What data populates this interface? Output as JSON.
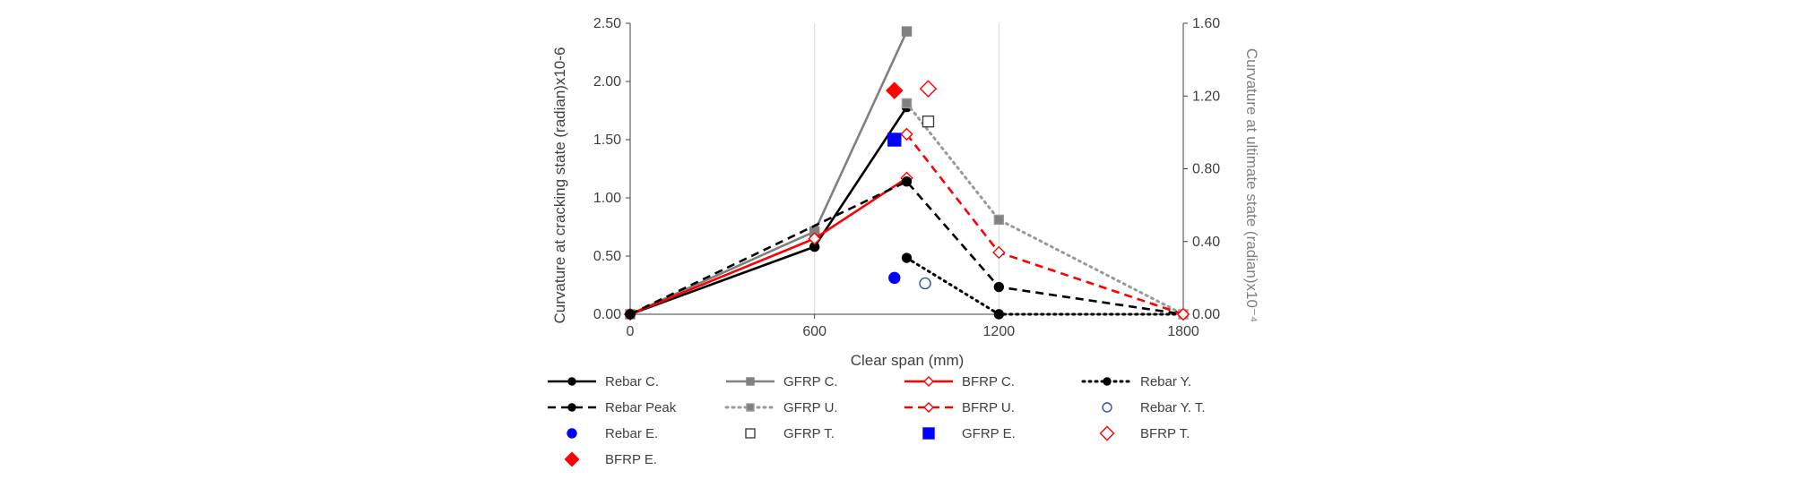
{
  "chart_data": {
    "type": "line",
    "xlabel": "Clear span (mm)",
    "ylabel_left": "Curvature at cracking state (radian)x10-6",
    "ylabel_right": "Curvature at ultimate state (radian)x10⁻⁴",
    "xlim": [
      0,
      1800
    ],
    "x_ticks": [
      "0",
      "600",
      "1200",
      "1800"
    ],
    "ylim_left": [
      0,
      2.5
    ],
    "y_ticks_left": [
      "0.00",
      "0.50",
      "1.00",
      "1.50",
      "2.00",
      "2.50"
    ],
    "ylim_right": [
      0,
      1.6
    ],
    "y_ticks_right": [
      "0.00",
      "0.40",
      "0.80",
      "1.20",
      "1.60"
    ],
    "grid": "vertical",
    "legend_position": "bottom",
    "series": [
      {
        "name": "Rebar C.",
        "axis": "left",
        "x": [
          0,
          600,
          900
        ],
        "y": [
          0,
          0.58,
          1.78
        ],
        "color": "#000000",
        "dash": "solid",
        "marker": "circle",
        "marker_fill": "#000000",
        "marker_size": 5
      },
      {
        "name": "GFRP C.",
        "axis": "left",
        "x": [
          0,
          600,
          900
        ],
        "y": [
          0,
          0.71,
          2.43
        ],
        "color": "#808080",
        "dash": "solid",
        "marker": "square",
        "marker_fill": "#808080",
        "marker_size": 5
      },
      {
        "name": "BFRP C.",
        "axis": "left",
        "x": [
          0,
          600,
          900
        ],
        "y": [
          0,
          0.65,
          1.17
        ],
        "color": "#ff0000",
        "dash": "solid",
        "marker": "diamond",
        "marker_fill": "#ffffff",
        "marker_size": 5
      },
      {
        "name": "Rebar Y.",
        "axis": "right",
        "x": [
          900,
          1200,
          1800
        ],
        "y": [
          0.31,
          0,
          0
        ],
        "color": "#000000",
        "dash": "dot",
        "marker": "circle",
        "marker_fill": "#000000",
        "marker_size": 5
      },
      {
        "name": "Rebar Peak",
        "axis": "right",
        "x": [
          0,
          900,
          1200,
          1800
        ],
        "y": [
          0,
          0.73,
          0.15,
          0
        ],
        "color": "#000000",
        "dash": "dash",
        "marker": "circle",
        "marker_fill": "#000000",
        "marker_size": 5
      },
      {
        "name": "GFRP U.",
        "axis": "right",
        "x": [
          900,
          1200,
          1800
        ],
        "y": [
          1.16,
          0.52,
          0
        ],
        "color": "#999999",
        "dash": "dot",
        "marker": "square",
        "marker_fill": "#808080",
        "marker_size": 5
      },
      {
        "name": "BFRP U.",
        "axis": "right",
        "x": [
          900,
          1200,
          1800
        ],
        "y": [
          0.99,
          0.34,
          0
        ],
        "color": "#ff0000",
        "dash": "dash",
        "marker": "diamond",
        "marker_fill": "#ffffff",
        "marker_size": 5
      },
      {
        "name": "Rebar Y. T.",
        "axis": "right",
        "x": [
          960
        ],
        "y": [
          0.17
        ],
        "color": "#2f5597",
        "dash": "none",
        "marker": "circle",
        "marker_fill": "#ffffff",
        "marker_size": 6
      },
      {
        "name": "Rebar E.",
        "axis": "right",
        "x": [
          860
        ],
        "y": [
          0.2
        ],
        "color": "#0000ff",
        "dash": "none",
        "marker": "circle",
        "marker_fill": "#0000ff",
        "marker_size": 6
      },
      {
        "name": "GFRP T.",
        "axis": "right",
        "x": [
          970
        ],
        "y": [
          1.06
        ],
        "color": "#404040",
        "dash": "none",
        "marker": "square",
        "marker_fill": "#ffffff",
        "marker_size": 6
      },
      {
        "name": "GFRP E.",
        "axis": "right",
        "x": [
          860
        ],
        "y": [
          0.96
        ],
        "color": "#0000ff",
        "dash": "none",
        "marker": "square",
        "marker_fill": "#0000ff",
        "marker_size": 7
      },
      {
        "name": "BFRP T.",
        "axis": "right",
        "x": [
          970
        ],
        "y": [
          1.24
        ],
        "color": "#ff0000",
        "dash": "none",
        "marker": "diamond",
        "marker_fill": "#ffffff",
        "marker_size": 7
      },
      {
        "name": "BFRP E.",
        "axis": "right",
        "x": [
          860
        ],
        "y": [
          1.23
        ],
        "color": "#ff0000",
        "dash": "none",
        "marker": "diamond",
        "marker_fill": "#ff0000",
        "marker_size": 7
      }
    ]
  }
}
